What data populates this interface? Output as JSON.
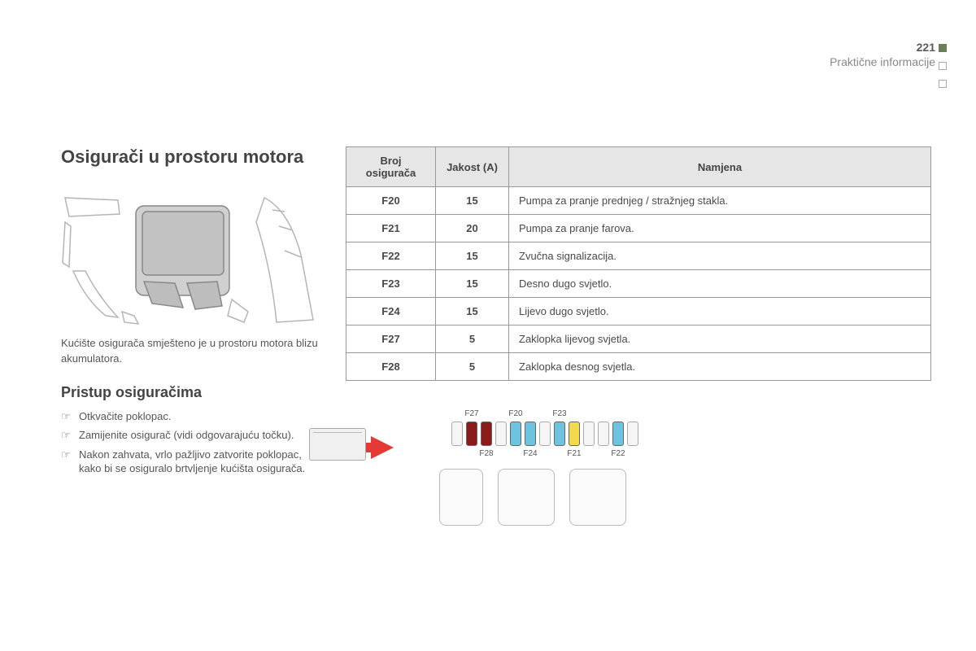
{
  "page_number": "221",
  "chapter": "Praktične informacije",
  "section_title": "Osigurači u prostoru motora",
  "caption": "Kućište osigurača smješteno je u prostoru motora blizu akumulatora.",
  "sub_title": "Pristup osiguračima",
  "steps": [
    "Otkvačite poklopac.",
    "Zamijenite osigurač (vidi odgovarajuću točku).",
    "Nakon zahvata, vrlo pažljivo zatvorite poklopac, kako bi se osiguralo brtvljenje kućišta osigurača."
  ],
  "table": {
    "columns": [
      "Broj osigurača",
      "Jakost (A)",
      "Namjena"
    ],
    "rows": [
      [
        "F20",
        "15",
        "Pumpa za pranje prednjeg / stražnjeg stakla."
      ],
      [
        "F21",
        "20",
        "Pumpa za pranje farova."
      ],
      [
        "F22",
        "15",
        "Zvučna signalizacija."
      ],
      [
        "F23",
        "15",
        "Desno dugo svjetlo."
      ],
      [
        "F24",
        "15",
        "Lijevo dugo svjetlo."
      ],
      [
        "F27",
        "5",
        "Zaklopka lijevog svjetla."
      ],
      [
        "F28",
        "5",
        "Zaklopka desnog svjetla."
      ]
    ]
  },
  "fuse_diagram": {
    "slots": [
      {
        "filled": false
      },
      {
        "filled": true,
        "color": "#8b1a1a",
        "label_top": "F27"
      },
      {
        "filled": true,
        "color": "#8b1a1a",
        "label_bottom": "F28"
      },
      {
        "filled": false
      },
      {
        "filled": true,
        "color": "#6ec4e0",
        "label_top": "F20"
      },
      {
        "filled": true,
        "color": "#6ec4e0",
        "label_bottom": "F24"
      },
      {
        "filled": false
      },
      {
        "filled": true,
        "color": "#6ec4e0",
        "label_top": "F23"
      },
      {
        "filled": true,
        "color": "#f2d94e",
        "label_bottom": "F21"
      },
      {
        "filled": false
      },
      {
        "filled": false
      },
      {
        "filled": true,
        "color": "#6ec4e0",
        "label_bottom": "F22"
      },
      {
        "filled": false
      }
    ],
    "arrow_color": "#e53935"
  },
  "colors": {
    "accent": "#6b7f56",
    "border": "#999999",
    "header_bg": "#e6e6e6",
    "text": "#4a4a4a"
  }
}
